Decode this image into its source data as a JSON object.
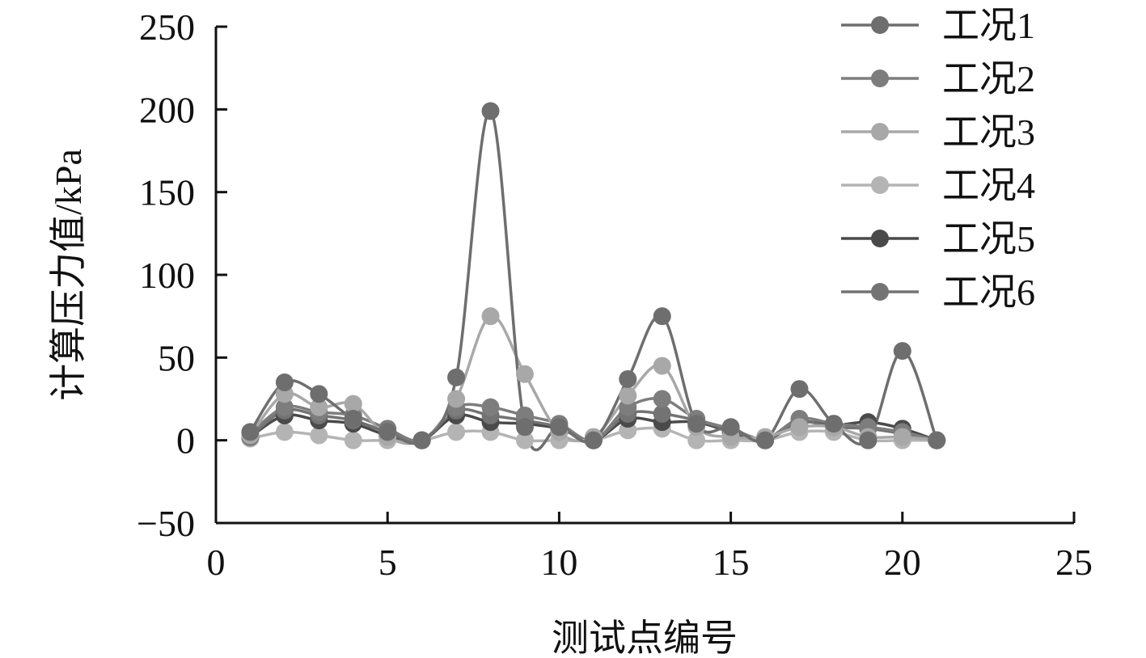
{
  "chart_data": {
    "type": "line",
    "title": "",
    "xlabel": "测试点编号",
    "ylabel": "计算压力值/kPa",
    "xlim": [
      0,
      25
    ],
    "ylim": [
      -50,
      250
    ],
    "xticks": [
      0,
      5,
      10,
      15,
      20,
      25
    ],
    "yticks": [
      -50,
      0,
      50,
      100,
      150,
      200,
      250
    ],
    "xtick_labels": [
      "0",
      "5",
      "10",
      "15",
      "20",
      "25"
    ],
    "ytick_labels": [
      "−50",
      "0",
      "50",
      "100",
      "150",
      "200",
      "250"
    ],
    "grid": false,
    "legend_position": "top-right",
    "x": [
      1,
      2,
      3,
      4,
      5,
      6,
      7,
      8,
      9,
      10,
      11,
      12,
      13,
      14,
      15,
      16,
      17,
      18,
      19,
      20,
      21
    ],
    "series": [
      {
        "name": "工况1",
        "color": "#6e6e6e",
        "values": [
          5,
          35,
          28,
          13,
          5,
          0,
          38,
          199,
          8,
          8,
          0,
          37,
          75,
          10,
          8,
          0,
          31,
          10,
          0,
          54,
          0
        ]
      },
      {
        "name": "工况2",
        "color": "#7d7d7d",
        "values": [
          4,
          20,
          17,
          15,
          7,
          0,
          20,
          20,
          15,
          10,
          0,
          20,
          25,
          13,
          7,
          1,
          13,
          10,
          8,
          5,
          0
        ]
      },
      {
        "name": "工况3",
        "color": "#a8a8a8",
        "values": [
          3,
          28,
          20,
          22,
          2,
          0,
          25,
          75,
          40,
          5,
          2,
          27,
          45,
          8,
          2,
          2,
          8,
          8,
          2,
          2,
          0
        ]
      },
      {
        "name": "工况4",
        "color": "#b4b4b4",
        "values": [
          1,
          5,
          3,
          0,
          0,
          0,
          5,
          5,
          0,
          0,
          0,
          6,
          7,
          0,
          0,
          0,
          5,
          5,
          0,
          0,
          0
        ]
      },
      {
        "name": "工况5",
        "color": "#4a4a4a",
        "values": [
          2,
          15,
          12,
          10,
          3,
          0,
          15,
          11,
          10,
          7,
          0,
          13,
          11,
          11,
          5,
          0,
          11,
          9,
          11,
          7,
          0
        ]
      },
      {
        "name": "工况6",
        "color": "#737373",
        "values": [
          2,
          18,
          15,
          12,
          5,
          0,
          18,
          15,
          12,
          8,
          0,
          16,
          16,
          12,
          6,
          0,
          11,
          8,
          7,
          4,
          0
        ]
      }
    ]
  }
}
